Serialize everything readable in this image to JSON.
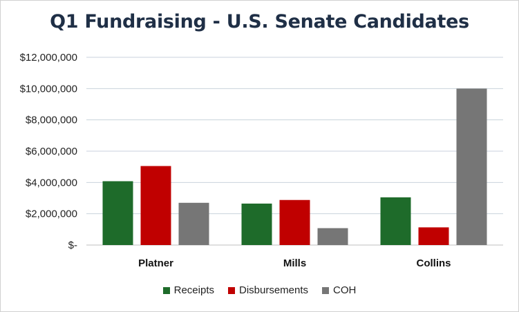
{
  "chart_data": {
    "type": "bar",
    "title": "Q1 Fundraising - U.S. Senate Candidates",
    "categories": [
      "Platner",
      "Mills",
      "Collins"
    ],
    "series": [
      {
        "name": "Receipts",
        "color": "#1e6b2a",
        "values": [
          4080000,
          2650000,
          3050000
        ]
      },
      {
        "name": "Disbursements",
        "color": "#c00000",
        "values": [
          5050000,
          2880000,
          1130000
        ]
      },
      {
        "name": "COH",
        "color": "#767676",
        "values": [
          2700000,
          1080000,
          10000000
        ]
      }
    ],
    "ylim": [
      0,
      12000000
    ],
    "yticks": [
      0,
      2000000,
      4000000,
      6000000,
      8000000,
      10000000,
      12000000
    ],
    "ytick_labels": [
      "$-",
      "$2,000,000",
      "$4,000,000",
      "$6,000,000",
      "$8,000,000",
      "$10,000,000",
      "$12,000,000"
    ],
    "grid": true,
    "legend_position": "bottom"
  }
}
